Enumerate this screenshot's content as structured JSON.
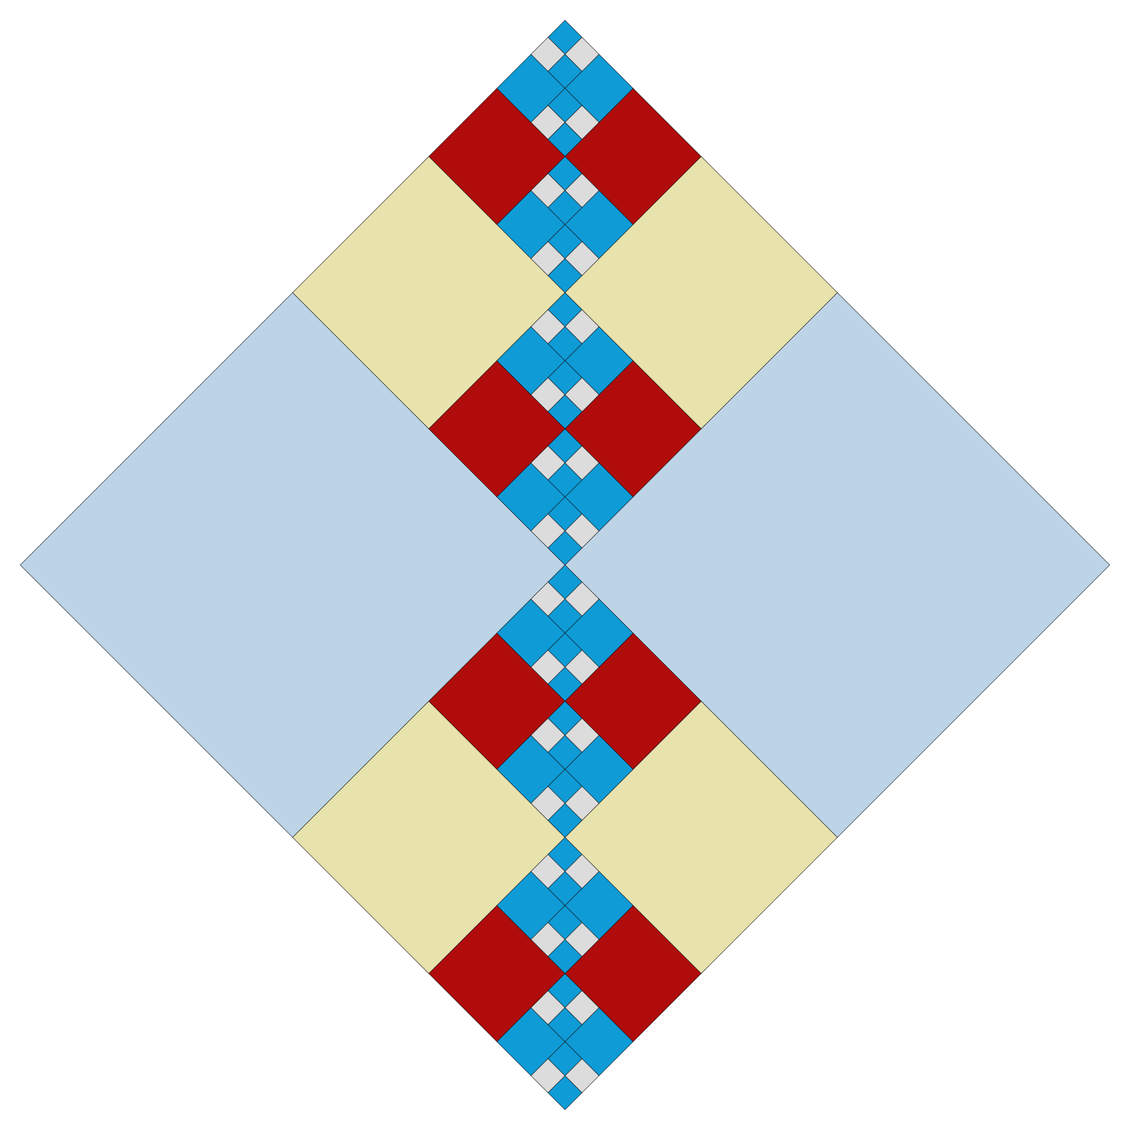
{
  "pattern": {
    "style": "recursive four-patch fractal cross, rotated 45 degrees",
    "depth": 3
  },
  "palette": {
    "background": "#ffffff",
    "corner": "#bdd4e7",
    "cream": "#e8e2ad",
    "red": "#b00c0c",
    "blue": "#0f9bd6",
    "light": "#dcdcdc",
    "stroke": "#111111"
  }
}
